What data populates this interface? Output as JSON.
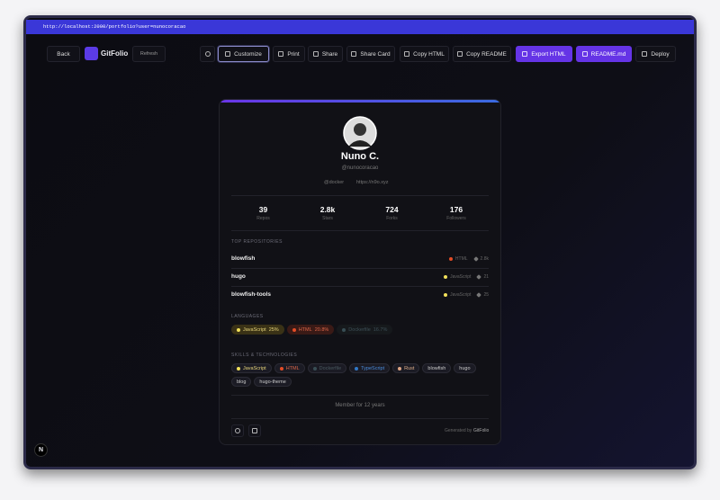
{
  "browser": {
    "url": "http://localhost:2000/portfolio?user=nunocoracao"
  },
  "toolbar": {
    "back": "Back",
    "brand": "GitFolio",
    "refresh": "Refresh",
    "buttons": [
      "Customize",
      "Print",
      "Share",
      "Share Card",
      "Copy HTML",
      "Copy README"
    ],
    "primary": [
      "Export HTML",
      "README.md"
    ],
    "deploy": "Deploy"
  },
  "profile": {
    "name": "Nuno C.",
    "handle": "@nunocoracao",
    "company": "@docker",
    "website": "https://n9o.xyz"
  },
  "stats": [
    {
      "value": 39,
      "label": "Repos"
    },
    {
      "value": "2.8k",
      "label": "Stars"
    },
    {
      "value": 724,
      "label": "Forks"
    },
    {
      "value": 176,
      "label": "Followers"
    }
  ],
  "repositories": {
    "title": "TOP REPOSITORIES",
    "items": [
      {
        "name": "blowfish",
        "language": "HTML",
        "stars": "2.8k"
      },
      {
        "name": "hugo",
        "language": "JavaScript",
        "stars": 21
      },
      {
        "name": "blowfish-tools",
        "language": "JavaScript",
        "stars": 25
      }
    ]
  },
  "languages": {
    "title": "LANGUAGES",
    "items": [
      {
        "name": "JavaScript",
        "share": "25%"
      },
      {
        "name": "HTML",
        "share": "20.8%"
      },
      {
        "name": "Dockerfile",
        "share": "16.7%"
      }
    ]
  },
  "skills": {
    "title": "SKILLS & TECHNOLOGIES",
    "items": [
      "JavaScript",
      "HTML",
      "Dockerfile",
      "TypeScript",
      "Rust",
      "blowfish",
      "hugo",
      "blog",
      "hugo-theme"
    ]
  },
  "member": "Member for 12 years",
  "footer": {
    "prefix": "Generated by",
    "brand": "GitFolio"
  },
  "badge": "N"
}
